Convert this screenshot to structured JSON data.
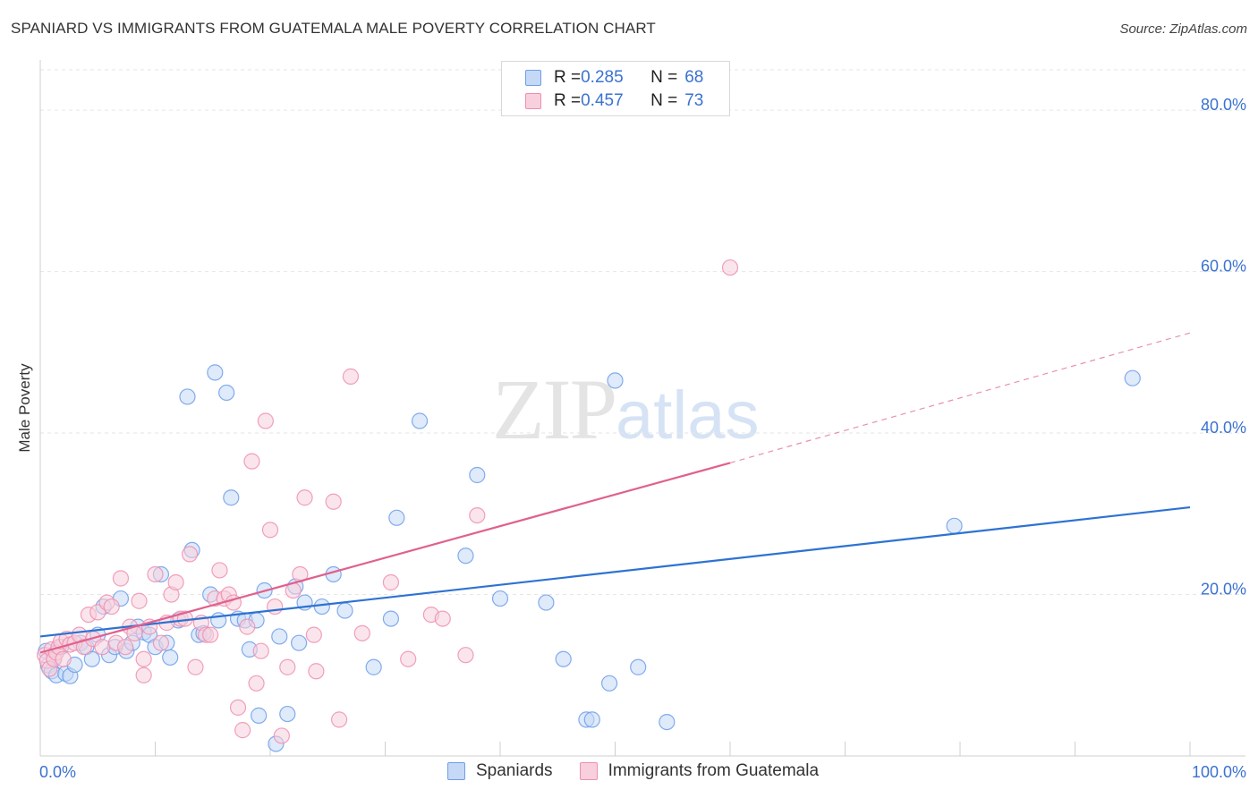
{
  "title": "SPANIARD VS IMMIGRANTS FROM GUATEMALA MALE POVERTY CORRELATION CHART",
  "source": "Source: ZipAtlas.com",
  "colors": {
    "blue": "#6d9eea",
    "blue_fill": "#c5d8f6",
    "blue_line": "#2d72d2",
    "pink": "#ee8faf",
    "pink_fill": "#f8cfdc",
    "pink_line": "#e0608e",
    "axis_text": "#3a72d0",
    "grid": "#e6e6e6"
  },
  "watermark": {
    "zip": "ZIP",
    "atlas": "atlas"
  },
  "legend_top": [
    {
      "r_label": "R = ",
      "r_value": "0.285",
      "n_label": "N = ",
      "n_value": "68"
    },
    {
      "r_label": "R = ",
      "r_value": "0.457",
      "n_label": "N = ",
      "n_value": "73"
    }
  ],
  "legend_bottom": [
    "Spaniards",
    "Immigrants from Guatemala"
  ],
  "chart_data": {
    "type": "scatter",
    "title": "SPANIARD VS IMMIGRANTS FROM GUATEMALA MALE POVERTY CORRELATION CHART",
    "xlabel": "",
    "ylabel": "Male Poverty",
    "xlim": [
      0,
      100
    ],
    "ylim": [
      0,
      85
    ],
    "x_tick_labels": [
      "0.0%",
      "100.0%"
    ],
    "y_ticks": [
      20,
      40,
      60,
      80
    ],
    "y_tick_labels": [
      "20.0%",
      "40.0%",
      "60.0%",
      "80.0%"
    ],
    "grid": true,
    "series": [
      {
        "name": "Spaniards",
        "R": 0.285,
        "N": 68,
        "trend": {
          "x0": 0,
          "y0": 14.8,
          "x1": 100,
          "y1": 30.8
        },
        "points": [
          [
            0.5,
            13.0
          ],
          [
            0.7,
            11.2
          ],
          [
            1.0,
            10.5
          ],
          [
            1.2,
            12.2
          ],
          [
            1.4,
            10.0
          ],
          [
            1.8,
            13.5
          ],
          [
            2.2,
            10.2
          ],
          [
            2.6,
            9.9
          ],
          [
            3.0,
            11.3
          ],
          [
            3.5,
            14.0
          ],
          [
            4.0,
            13.5
          ],
          [
            4.5,
            12.0
          ],
          [
            5.0,
            15.0
          ],
          [
            5.5,
            18.5
          ],
          [
            6.0,
            12.5
          ],
          [
            6.5,
            13.5
          ],
          [
            7.0,
            19.5
          ],
          [
            7.5,
            13.0
          ],
          [
            8.0,
            14.0
          ],
          [
            8.5,
            16.0
          ],
          [
            9.0,
            15.3
          ],
          [
            9.5,
            15.0
          ],
          [
            10.0,
            13.5
          ],
          [
            10.5,
            22.5
          ],
          [
            11.0,
            14.0
          ],
          [
            11.3,
            12.2
          ],
          [
            12.0,
            16.8
          ],
          [
            12.8,
            44.5
          ],
          [
            13.2,
            25.5
          ],
          [
            13.8,
            15.0
          ],
          [
            14.2,
            15.2
          ],
          [
            14.8,
            20.0
          ],
          [
            15.2,
            47.5
          ],
          [
            15.5,
            16.8
          ],
          [
            16.2,
            45.0
          ],
          [
            16.6,
            32.0
          ],
          [
            17.2,
            17.0
          ],
          [
            17.8,
            16.8
          ],
          [
            18.2,
            13.2
          ],
          [
            18.8,
            16.8
          ],
          [
            19.0,
            5.0
          ],
          [
            19.5,
            20.5
          ],
          [
            20.5,
            1.5
          ],
          [
            20.8,
            14.8
          ],
          [
            21.5,
            5.2
          ],
          [
            22.2,
            21.0
          ],
          [
            22.5,
            14.0
          ],
          [
            23.0,
            19.0
          ],
          [
            24.5,
            18.5
          ],
          [
            25.5,
            22.5
          ],
          [
            26.5,
            18.0
          ],
          [
            29.0,
            11.0
          ],
          [
            30.5,
            17.0
          ],
          [
            31.0,
            29.5
          ],
          [
            33.0,
            41.5
          ],
          [
            37.0,
            24.8
          ],
          [
            38.0,
            34.8
          ],
          [
            40.0,
            19.5
          ],
          [
            44.0,
            19.0
          ],
          [
            45.5,
            12.0
          ],
          [
            47.5,
            4.5
          ],
          [
            48.0,
            4.5
          ],
          [
            49.5,
            9.0
          ],
          [
            50.0,
            46.5
          ],
          [
            52.0,
            11.0
          ],
          [
            54.5,
            4.2
          ],
          [
            79.5,
            28.5
          ],
          [
            95.0,
            46.8
          ]
        ]
      },
      {
        "name": "Immigrants from Guatemala",
        "R": 0.457,
        "N": 73,
        "trend": {
          "x0": 0,
          "y0": 12.8,
          "x1": 60,
          "y1": 36.3
        },
        "trend_extension": {
          "x0": 60,
          "y0": 36.3,
          "x1": 100,
          "y1": 52.4
        },
        "points": [
          [
            0.4,
            12.5
          ],
          [
            0.6,
            11.8
          ],
          [
            0.8,
            10.8
          ],
          [
            1.0,
            13.2
          ],
          [
            1.2,
            12.0
          ],
          [
            1.4,
            12.8
          ],
          [
            1.6,
            13.5
          ],
          [
            1.8,
            14.2
          ],
          [
            2.0,
            12.0
          ],
          [
            2.3,
            14.5
          ],
          [
            2.6,
            13.8
          ],
          [
            3.0,
            14.0
          ],
          [
            3.4,
            15.0
          ],
          [
            3.8,
            13.5
          ],
          [
            4.2,
            17.5
          ],
          [
            4.6,
            14.5
          ],
          [
            5.0,
            17.8
          ],
          [
            5.4,
            13.5
          ],
          [
            5.8,
            19.0
          ],
          [
            6.2,
            18.5
          ],
          [
            6.6,
            14.0
          ],
          [
            7.0,
            22.0
          ],
          [
            7.4,
            13.5
          ],
          [
            7.8,
            16.0
          ],
          [
            8.2,
            15.2
          ],
          [
            8.6,
            19.2
          ],
          [
            9.0,
            10.0
          ],
          [
            9.5,
            16.0
          ],
          [
            10.0,
            22.5
          ],
          [
            10.5,
            14.0
          ],
          [
            11.0,
            16.5
          ],
          [
            11.4,
            20.0
          ],
          [
            11.8,
            21.5
          ],
          [
            12.2,
            17.0
          ],
          [
            12.6,
            17.0
          ],
          [
            13.0,
            25.0
          ],
          [
            13.5,
            11.0
          ],
          [
            14.0,
            16.5
          ],
          [
            14.4,
            15.0
          ],
          [
            14.8,
            15.0
          ],
          [
            15.2,
            19.5
          ],
          [
            15.6,
            23.0
          ],
          [
            16.0,
            19.5
          ],
          [
            16.4,
            20.0
          ],
          [
            16.8,
            19.0
          ],
          [
            17.2,
            6.0
          ],
          [
            17.6,
            3.2
          ],
          [
            18.0,
            16.0
          ],
          [
            18.4,
            36.5
          ],
          [
            18.8,
            9.0
          ],
          [
            19.2,
            13.0
          ],
          [
            19.6,
            41.5
          ],
          [
            20.0,
            28.0
          ],
          [
            20.4,
            18.5
          ],
          [
            21.0,
            2.5
          ],
          [
            21.5,
            11.0
          ],
          [
            22.0,
            20.5
          ],
          [
            22.6,
            22.5
          ],
          [
            23.0,
            32.0
          ],
          [
            23.8,
            15.0
          ],
          [
            24.0,
            10.5
          ],
          [
            25.5,
            31.5
          ],
          [
            26.0,
            4.5
          ],
          [
            27.0,
            47.0
          ],
          [
            28.0,
            15.2
          ],
          [
            30.5,
            21.5
          ],
          [
            32.0,
            12.0
          ],
          [
            34.0,
            17.5
          ],
          [
            35.0,
            17.0
          ],
          [
            37.0,
            12.5
          ],
          [
            38.0,
            29.8
          ],
          [
            60.0,
            60.5
          ],
          [
            9.0,
            12.0
          ]
        ]
      }
    ]
  }
}
